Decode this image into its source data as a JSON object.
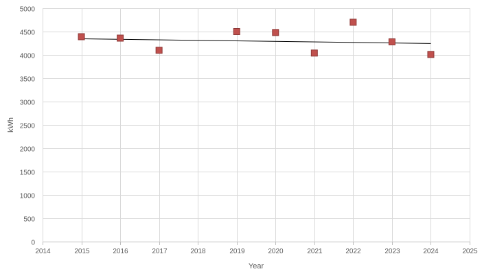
{
  "chart_data": {
    "type": "scatter",
    "title": "",
    "xlabel": "Year",
    "ylabel": "kWh",
    "xlim": [
      2014,
      2025
    ],
    "ylim": [
      0,
      5000
    ],
    "x_ticks": [
      "2014",
      "2015",
      "2016",
      "2017",
      "2018",
      "2019",
      "2020",
      "2021",
      "2022",
      "2023",
      "2024",
      "2025"
    ],
    "y_ticks": [
      "0",
      "500",
      "1000",
      "1500",
      "2000",
      "2500",
      "3000",
      "3500",
      "4000",
      "4500",
      "5000"
    ],
    "grid": true,
    "legend": "none",
    "series": [
      {
        "points": [
          {
            "x": 2015,
            "y": 4390
          },
          {
            "x": 2016,
            "y": 4360
          },
          {
            "x": 2017,
            "y": 4100
          },
          {
            "x": 2019,
            "y": 4500
          },
          {
            "x": 2020,
            "y": 4480
          },
          {
            "x": 2021,
            "y": 4040
          },
          {
            "x": 2022,
            "y": 4700
          },
          {
            "x": 2023,
            "y": 4280
          },
          {
            "x": 2024,
            "y": 4010
          }
        ],
        "color": "#C0504D",
        "edge_color": "#8C3836",
        "marker": "square"
      }
    ],
    "trendline": {
      "type": "linear",
      "x": [
        2015,
        2024
      ],
      "y": [
        4345,
        4245
      ],
      "color": "#000000"
    },
    "colors": {
      "grid": "#D9D9D9",
      "axis": "#BFBFBF",
      "text": "#595959"
    }
  }
}
